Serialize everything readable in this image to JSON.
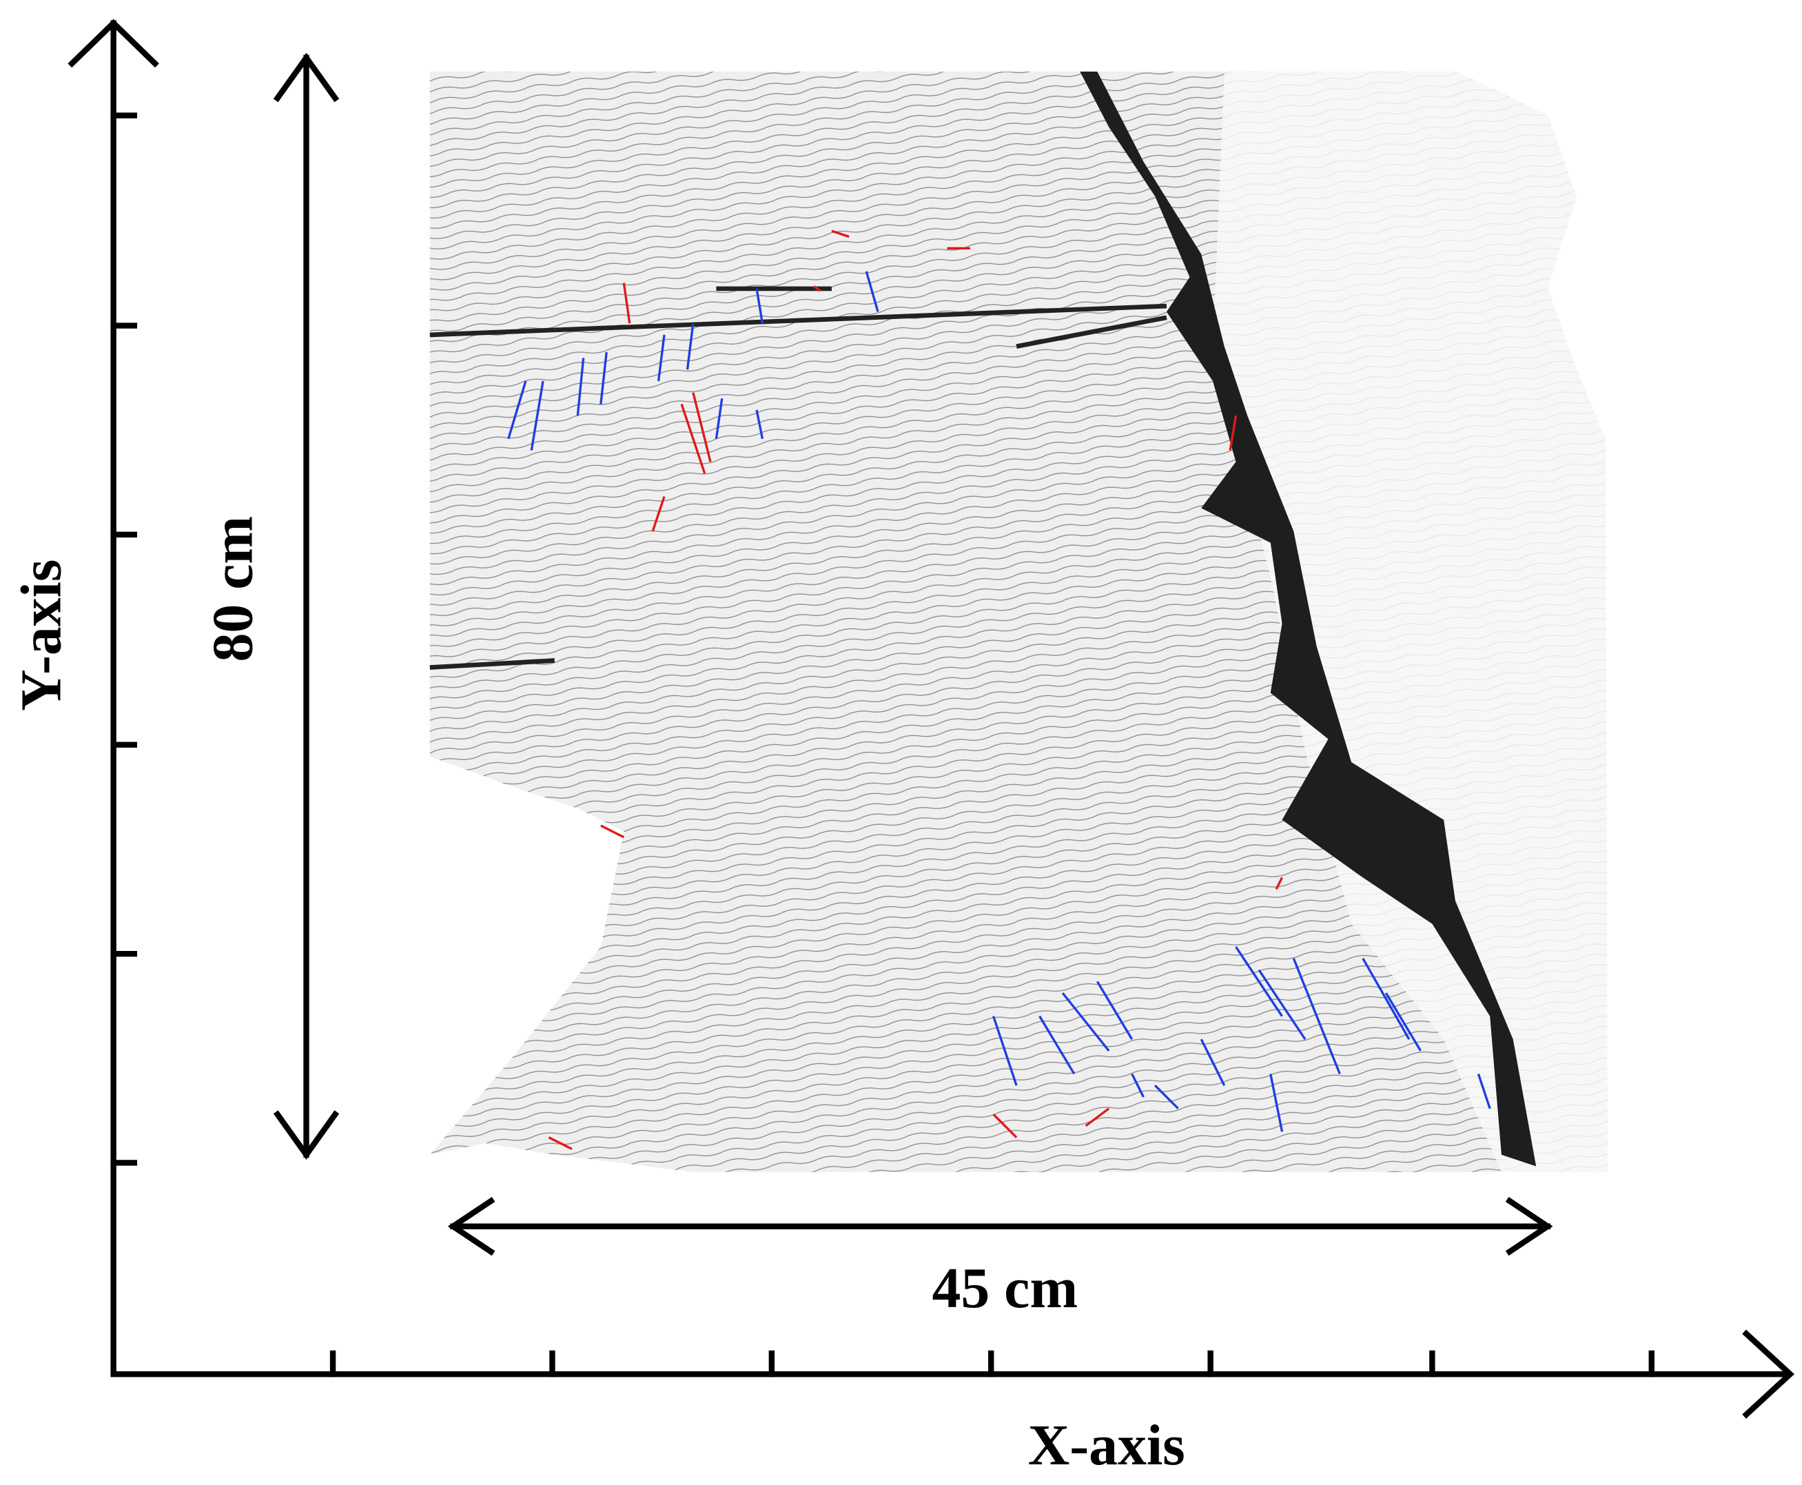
{
  "axes": {
    "x_label": "X-axis",
    "y_label": "Y-axis"
  },
  "dimensions": {
    "height": "80 cm",
    "width": "45 cm"
  }
}
